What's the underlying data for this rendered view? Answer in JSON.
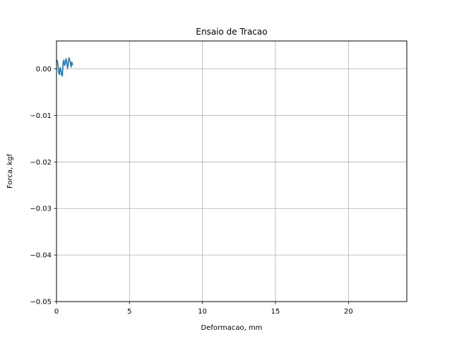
{
  "chart_data": {
    "type": "line",
    "title": "Ensaio de Tracao",
    "xlabel": "Deformacao, mm",
    "ylabel": "Forca, kgf",
    "xlim": [
      0,
      24
    ],
    "ylim": [
      -0.05,
      0.006
    ],
    "xticks": [
      0,
      5,
      10,
      15,
      20
    ],
    "xtick_labels": [
      "0",
      "5",
      "10",
      "15",
      "20"
    ],
    "yticks": [
      0.0,
      -0.01,
      -0.02,
      -0.03,
      -0.04,
      -0.05
    ],
    "ytick_labels": [
      "0.00",
      "−0.01",
      "−0.02",
      "−0.03",
      "−0.04",
      "−0.05"
    ],
    "grid": true,
    "series": [
      {
        "color": "#1f77b4",
        "x": [
          0.0,
          0.05,
          0.1,
          0.15,
          0.2,
          0.25,
          0.3,
          0.35,
          0.4,
          0.45,
          0.5,
          0.55,
          0.6,
          0.65,
          0.7,
          0.75,
          0.8,
          0.85,
          0.9,
          0.95,
          1.0,
          1.05,
          1.1
        ],
        "values": [
          0.0017,
          0.0018,
          0.0008,
          -0.0008,
          -0.0012,
          0.0003,
          -0.0002,
          -0.0013,
          -0.0015,
          0.0012,
          0.0019,
          0.0007,
          0.0012,
          0.0022,
          0.0016,
          0.0001,
          0.0009,
          0.0024,
          0.0019,
          0.0013,
          0.0004,
          0.0015,
          0.0008
        ]
      }
    ]
  }
}
